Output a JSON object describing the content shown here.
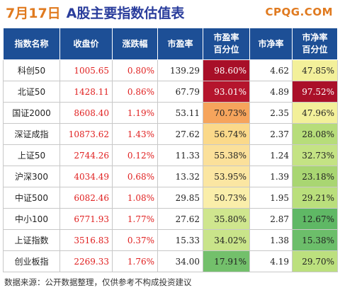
{
  "header": {
    "date": "7月17日",
    "title": "A股主要指数估值表",
    "brand": "CPQG.COM"
  },
  "columns": [
    "指数名称",
    "收盘价",
    "涨跌幅",
    "市盈率",
    "市盈率\n百分位",
    "市净率",
    "市净率\n百分位"
  ],
  "rows": [
    {
      "name": "科创50",
      "close": "1005.65",
      "change": "0.80%",
      "pe": "139.29",
      "pe_pct": "98.60%",
      "pe_color": "#a80f28",
      "pe_text": "#ffffff",
      "pb": "4.62",
      "pb_pct": "47.85%",
      "pb_color": "#f3f09a",
      "pb_text": "#222222"
    },
    {
      "name": "北证50",
      "close": "1428.11",
      "change": "0.86%",
      "pe": "67.79",
      "pe_pct": "93.01%",
      "pe_color": "#b5152d",
      "pe_text": "#ffffff",
      "pb": "4.89",
      "pb_pct": "97.52%",
      "pb_color": "#aa1029",
      "pb_text": "#ffffff"
    },
    {
      "name": "国证2000",
      "close": "8608.40",
      "change": "1.19%",
      "pe": "53.11",
      "pe_pct": "70.73%",
      "pe_color": "#f6a45c",
      "pe_text": "#222222",
      "pb": "2.35",
      "pb_pct": "47.96%",
      "pb_color": "#f3f09a",
      "pb_text": "#222222"
    },
    {
      "name": "深证成指",
      "close": "10873.62",
      "change": "1.43%",
      "pe": "27.62",
      "pe_pct": "56.74%",
      "pe_color": "#fbd98a",
      "pe_text": "#222222",
      "pb": "2.37",
      "pb_pct": "28.08%",
      "pb_color": "#b7dd7a",
      "pb_text": "#222222"
    },
    {
      "name": "上证50",
      "close": "2744.26",
      "change": "0.12%",
      "pe": "11.33",
      "pe_pct": "55.38%",
      "pe_color": "#fbe09a",
      "pe_text": "#222222",
      "pb": "1.24",
      "pb_pct": "32.73%",
      "pb_color": "#c4e384",
      "pb_text": "#222222"
    },
    {
      "name": "沪深300",
      "close": "4034.49",
      "change": "0.68%",
      "pe": "13.32",
      "pe_pct": "53.95%",
      "pe_color": "#fbe6a2",
      "pe_text": "#222222",
      "pb": "1.39",
      "pb_pct": "23.18%",
      "pb_color": "#a9d672",
      "pb_text": "#222222"
    },
    {
      "name": "中证500",
      "close": "6082.46",
      "change": "1.08%",
      "pe": "29.85",
      "pe_pct": "50.73%",
      "pe_color": "#faeeaa",
      "pe_text": "#222222",
      "pb": "1.95",
      "pb_pct": "29.21%",
      "pb_color": "#badf7c",
      "pb_text": "#222222"
    },
    {
      "name": "中小100",
      "close": "6771.93",
      "change": "1.77%",
      "pe": "27.62",
      "pe_pct": "35.80%",
      "pe_color": "#cfe68e",
      "pe_text": "#222222",
      "pb": "2.87",
      "pb_pct": "12.67%",
      "pb_color": "#5fb865",
      "pb_text": "#222222"
    },
    {
      "name": "上证指数",
      "close": "3516.83",
      "change": "0.37%",
      "pe": "15.33",
      "pe_pct": "34.02%",
      "pe_color": "#c9e48a",
      "pe_text": "#222222",
      "pb": "1.38",
      "pb_pct": "15.38%",
      "pb_color": "#6cbe6a",
      "pb_text": "#222222"
    },
    {
      "name": "创业板指",
      "close": "2269.33",
      "change": "1.76%",
      "pe": "34.00",
      "pe_pct": "17.91%",
      "pe_color": "#73c06b",
      "pe_text": "#222222",
      "pb": "4.19",
      "pb_pct": "29.70%",
      "pb_color": "#bce07e",
      "pb_text": "#222222"
    }
  ],
  "footer": "数据来源：公开数据整理，仅供参考不构成投资建议",
  "colors": {
    "header_bg": "#1d4f96",
    "title_orange": "#e07a1f",
    "title_blue": "#2a3d9c",
    "value_red": "#e02020"
  }
}
